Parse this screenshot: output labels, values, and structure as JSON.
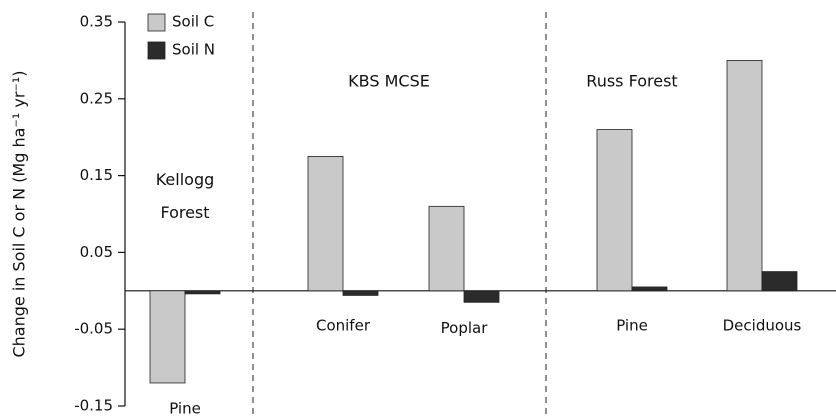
{
  "chart_data": {
    "type": "bar",
    "ylabel": "Change in Soil C or N (Mg ha⁻¹ yr⁻¹)",
    "categories": [
      "Pine",
      "Conifer",
      "Poplar",
      "Pine",
      "Deciduous"
    ],
    "annotations": [
      "Kellogg Forest",
      "KBS MCSE",
      "Russ Forest"
    ],
    "series": [
      {
        "name": "Soil C",
        "color": "#c9c9c9",
        "values": [
          -0.12,
          0.175,
          0.11,
          0.21,
          0.3
        ]
      },
      {
        "name": "Soil N",
        "color": "#2b2b2b",
        "values": [
          -0.004,
          -0.006,
          -0.015,
          0.005,
          0.025
        ]
      }
    ],
    "ylim": [
      -0.15,
      0.35
    ],
    "yticks": [
      -0.15,
      -0.05,
      0.05,
      0.15,
      0.25,
      0.35
    ],
    "legend": "upper left",
    "grid": false
  }
}
